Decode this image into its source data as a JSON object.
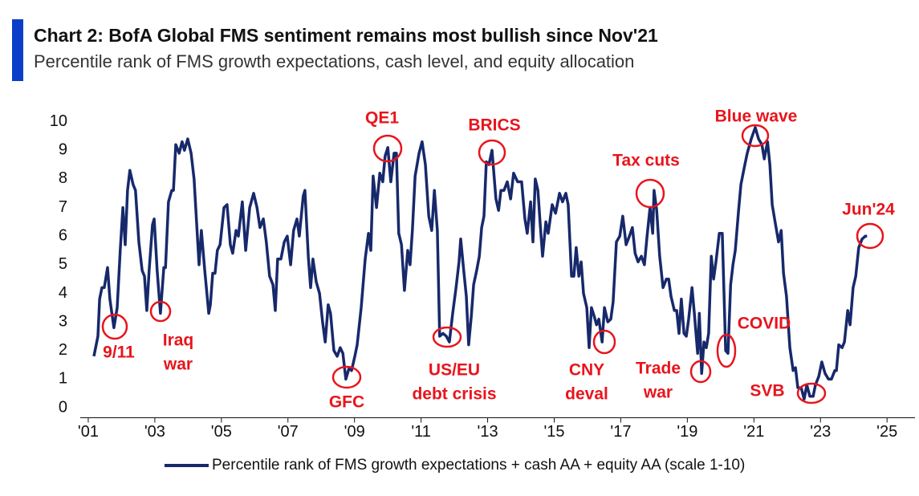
{
  "chart_data": {
    "type": "line",
    "title": "Chart 2: BofA Global FMS sentiment remains most bullish since Nov'21",
    "subtitle": "Percentile rank of FMS growth expectations, cash level, and equity allocation",
    "x": [
      2001.17,
      2001.29,
      2001.34,
      2001.41,
      2001.48,
      2001.58,
      2001.65,
      2001.77,
      2001.87,
      2001.96,
      2002.04,
      2002.11,
      2002.18,
      2002.25,
      2002.35,
      2002.42,
      2002.52,
      2002.62,
      2002.69,
      2002.76,
      2002.83,
      2002.93,
      2002.98,
      2003.07,
      2003.17,
      2003.27,
      2003.32,
      2003.41,
      2003.51,
      2003.56,
      2003.63,
      2003.73,
      2003.82,
      2003.89,
      2003.99,
      2004.09,
      2004.18,
      2004.33,
      2004.4,
      2004.5,
      2004.62,
      2004.67,
      2004.74,
      2004.81,
      2004.88,
      2004.96,
      2005.08,
      2005.17,
      2005.27,
      2005.34,
      2005.44,
      2005.51,
      2005.63,
      2005.73,
      2005.85,
      2005.97,
      2006.07,
      2006.16,
      2006.26,
      2006.35,
      2006.45,
      2006.55,
      2006.62,
      2006.69,
      2006.79,
      2006.89,
      2006.98,
      2007.08,
      2007.17,
      2007.27,
      2007.34,
      2007.46,
      2007.51,
      2007.61,
      2007.68,
      2007.75,
      2007.85,
      2007.95,
      2008.04,
      2008.12,
      2008.21,
      2008.28,
      2008.38,
      2008.48,
      2008.57,
      2008.65,
      2008.74,
      2008.84,
      2008.91,
      2009.01,
      2009.08,
      2009.2,
      2009.32,
      2009.42,
      2009.49,
      2009.56,
      2009.66,
      2009.76,
      2009.85,
      2009.92,
      2010.0,
      2010.09,
      2010.19,
      2010.26,
      2010.33,
      2010.41,
      2010.5,
      2010.6,
      2010.67,
      2010.74,
      2010.82,
      2010.94,
      2011.03,
      2011.13,
      2011.23,
      2011.32,
      2011.4,
      2011.49,
      2011.56,
      2011.66,
      2011.76,
      2011.85,
      2011.95,
      2012.05,
      2012.14,
      2012.19,
      2012.29,
      2012.36,
      2012.43,
      2012.51,
      2012.58,
      2012.67,
      2012.75,
      2012.82,
      2012.89,
      2012.96,
      2013.04,
      2013.13,
      2013.25,
      2013.33,
      2013.4,
      2013.49,
      2013.59,
      2013.69,
      2013.78,
      2013.9,
      2014.02,
      2014.12,
      2014.19,
      2014.29,
      2014.36,
      2014.43,
      2014.51,
      2014.58,
      2014.65,
      2014.75,
      2014.82,
      2014.94,
      2015.04,
      2015.16,
      2015.25,
      2015.35,
      2015.42,
      2015.52,
      2015.59,
      2015.66,
      2015.74,
      2015.81,
      2015.88,
      2015.98,
      2016.05,
      2016.12,
      2016.2,
      2016.27,
      2016.34,
      2016.44,
      2016.51,
      2016.61,
      2016.7,
      2016.77,
      2016.87,
      2016.97,
      2017.06,
      2017.16,
      2017.26,
      2017.35,
      2017.43,
      2017.52,
      2017.62,
      2017.71,
      2017.79,
      2017.88,
      2017.96,
      2018.0,
      2018.08,
      2018.17,
      2018.27,
      2018.37,
      2018.44,
      2018.51,
      2018.61,
      2018.68,
      2018.75,
      2018.82,
      2018.9,
      2018.97,
      2019.04,
      2019.14,
      2019.21,
      2019.31,
      2019.36,
      2019.43,
      2019.5,
      2019.57,
      2019.64,
      2019.72,
      2019.79,
      2019.86,
      2019.96,
      2020.05,
      2020.15,
      2020.22,
      2020.3,
      2020.37,
      2020.44,
      2020.54,
      2020.61,
      2020.71,
      2020.8,
      2020.92,
      2021.04,
      2021.14,
      2021.24,
      2021.31,
      2021.41,
      2021.48,
      2021.55,
      2021.65,
      2021.74,
      2021.82,
      2021.89,
      2021.98,
      2022.08,
      2022.18,
      2022.25,
      2022.32,
      2022.42,
      2022.51,
      2022.59,
      2022.68,
      2022.78,
      2022.85,
      2022.95,
      2023.04,
      2023.14,
      2023.24,
      2023.33,
      2023.43,
      2023.48,
      2023.55,
      2023.65,
      2023.72,
      2023.82,
      2023.89,
      2023.98,
      2024.06,
      2024.15,
      2024.25,
      2024.35,
      2024.4
    ],
    "series": [
      {
        "name": "Percentile rank of FMS growth expectations + cash AA + equity AA (scale 1-10)",
        "color": "#17296b",
        "values": [
          1.8,
          2.5,
          3.8,
          4.2,
          4.2,
          4.9,
          3.8,
          2.8,
          3.5,
          5.5,
          7.0,
          5.7,
          7.6,
          8.3,
          7.8,
          7.6,
          5.8,
          4.8,
          4.6,
          3.4,
          4.8,
          6.4,
          6.6,
          4.8,
          3.3,
          4.9,
          4.9,
          7.2,
          7.6,
          7.6,
          9.2,
          8.9,
          9.3,
          9.0,
          9.4,
          8.9,
          8.0,
          5.0,
          6.2,
          4.8,
          3.3,
          3.6,
          4.7,
          4.7,
          5.5,
          5.7,
          7.0,
          7.1,
          5.7,
          5.4,
          6.2,
          6.0,
          7.2,
          5.5,
          7.0,
          7.5,
          7.0,
          6.3,
          6.6,
          5.8,
          4.6,
          4.3,
          3.4,
          5.2,
          5.2,
          5.8,
          6.0,
          5.0,
          6.2,
          6.6,
          6.0,
          7.4,
          7.6,
          5.3,
          4.2,
          5.2,
          4.4,
          4.0,
          3.0,
          2.3,
          3.6,
          3.3,
          2.0,
          1.8,
          2.1,
          1.9,
          1.0,
          1.4,
          1.3,
          1.8,
          2.2,
          3.5,
          5.2,
          6.1,
          5.5,
          8.1,
          7.0,
          8.2,
          7.9,
          8.8,
          9.1,
          7.9,
          8.9,
          8.9,
          6.1,
          5.7,
          4.1,
          5.5,
          5.0,
          6.2,
          8.1,
          8.9,
          9.3,
          8.5,
          6.7,
          6.2,
          7.6,
          6.2,
          2.5,
          2.6,
          2.5,
          2.3,
          3.3,
          4.2,
          5.1,
          5.9,
          4.7,
          3.9,
          2.2,
          3.2,
          4.3,
          4.8,
          5.3,
          6.3,
          6.7,
          8.6,
          8.5,
          9.0,
          7.3,
          6.9,
          7.6,
          7.6,
          7.9,
          7.3,
          8.2,
          7.9,
          7.9,
          6.6,
          6.1,
          7.2,
          5.8,
          8.0,
          7.6,
          6.4,
          5.3,
          6.5,
          6.1,
          7.1,
          6.8,
          7.5,
          7.2,
          7.5,
          7.1,
          4.6,
          4.6,
          5.6,
          4.6,
          5.1,
          4.0,
          3.5,
          2.1,
          3.5,
          3.2,
          2.9,
          3.1,
          2.3,
          3.5,
          3.0,
          3.1,
          3.7,
          5.8,
          6.0,
          6.7,
          5.7,
          6.0,
          6.3,
          5.4,
          5.1,
          5.3,
          5.0,
          6.0,
          7.0,
          6.1,
          7.6,
          6.9,
          5.3,
          4.2,
          4.5,
          4.5,
          3.9,
          3.4,
          3.4,
          2.6,
          3.8,
          2.6,
          2.5,
          3.1,
          4.2,
          3.3,
          1.9,
          3.3,
          1.2,
          2.3,
          2.1,
          2.6,
          5.3,
          4.5,
          5.1,
          6.1,
          6.1,
          2.0,
          1.9,
          4.3,
          5.0,
          5.5,
          6.9,
          7.8,
          8.4,
          8.9,
          9.4,
          9.8,
          9.4,
          9.2,
          8.7,
          9.3,
          8.5,
          7.1,
          6.4,
          5.8,
          6.2,
          4.7,
          3.9,
          2.1,
          1.3,
          1.4,
          0.7,
          0.7,
          0.3,
          0.8,
          0.4,
          0.4,
          0.8,
          1.1,
          1.6,
          1.2,
          1.0,
          1.0,
          1.3,
          1.3,
          2.2,
          2.1,
          2.3,
          3.4,
          2.9,
          4.2,
          4.6,
          5.6,
          5.9,
          6.0,
          6.0
        ]
      }
    ],
    "xlim": [
      2000.76,
      2025.84
    ],
    "xticks": [
      {
        "value": 2001,
        "label": "'01"
      },
      {
        "value": 2003,
        "label": "'03"
      },
      {
        "value": 2005,
        "label": "'05"
      },
      {
        "value": 2007,
        "label": "'07"
      },
      {
        "value": 2009,
        "label": "'09"
      },
      {
        "value": 2011,
        "label": "'11"
      },
      {
        "value": 2013,
        "label": "'13"
      },
      {
        "value": 2015,
        "label": "'15"
      },
      {
        "value": 2017,
        "label": "'17"
      },
      {
        "value": 2019,
        "label": "'19"
      },
      {
        "value": 2021,
        "label": "'21"
      },
      {
        "value": 2023,
        "label": "'23"
      },
      {
        "value": 2025,
        "label": "'25"
      }
    ],
    "ylim": [
      -0.35,
      10.3
    ],
    "yticks": [
      0,
      1,
      2,
      3,
      4,
      5,
      6,
      7,
      8,
      9,
      10
    ],
    "annotations": [
      {
        "text": [
          "9/11"
        ]
      },
      {
        "text": [
          "Iraq",
          "war"
        ]
      },
      {
        "text": [
          "GFC"
        ]
      },
      {
        "text": [
          "QE1"
        ]
      },
      {
        "text": [
          "BRICS"
        ]
      },
      {
        "text": [
          "US/EU",
          "debt crisis"
        ]
      },
      {
        "text": [
          "CNY",
          "deval"
        ]
      },
      {
        "text": [
          "Tax cuts"
        ]
      },
      {
        "text": [
          "Trade",
          "war"
        ]
      },
      {
        "text": [
          "Blue wave"
        ]
      },
      {
        "text": [
          "COVID"
        ]
      },
      {
        "text": [
          "SVB"
        ]
      },
      {
        "text": [
          "Jun'24"
        ]
      }
    ],
    "legend": "bottom"
  }
}
